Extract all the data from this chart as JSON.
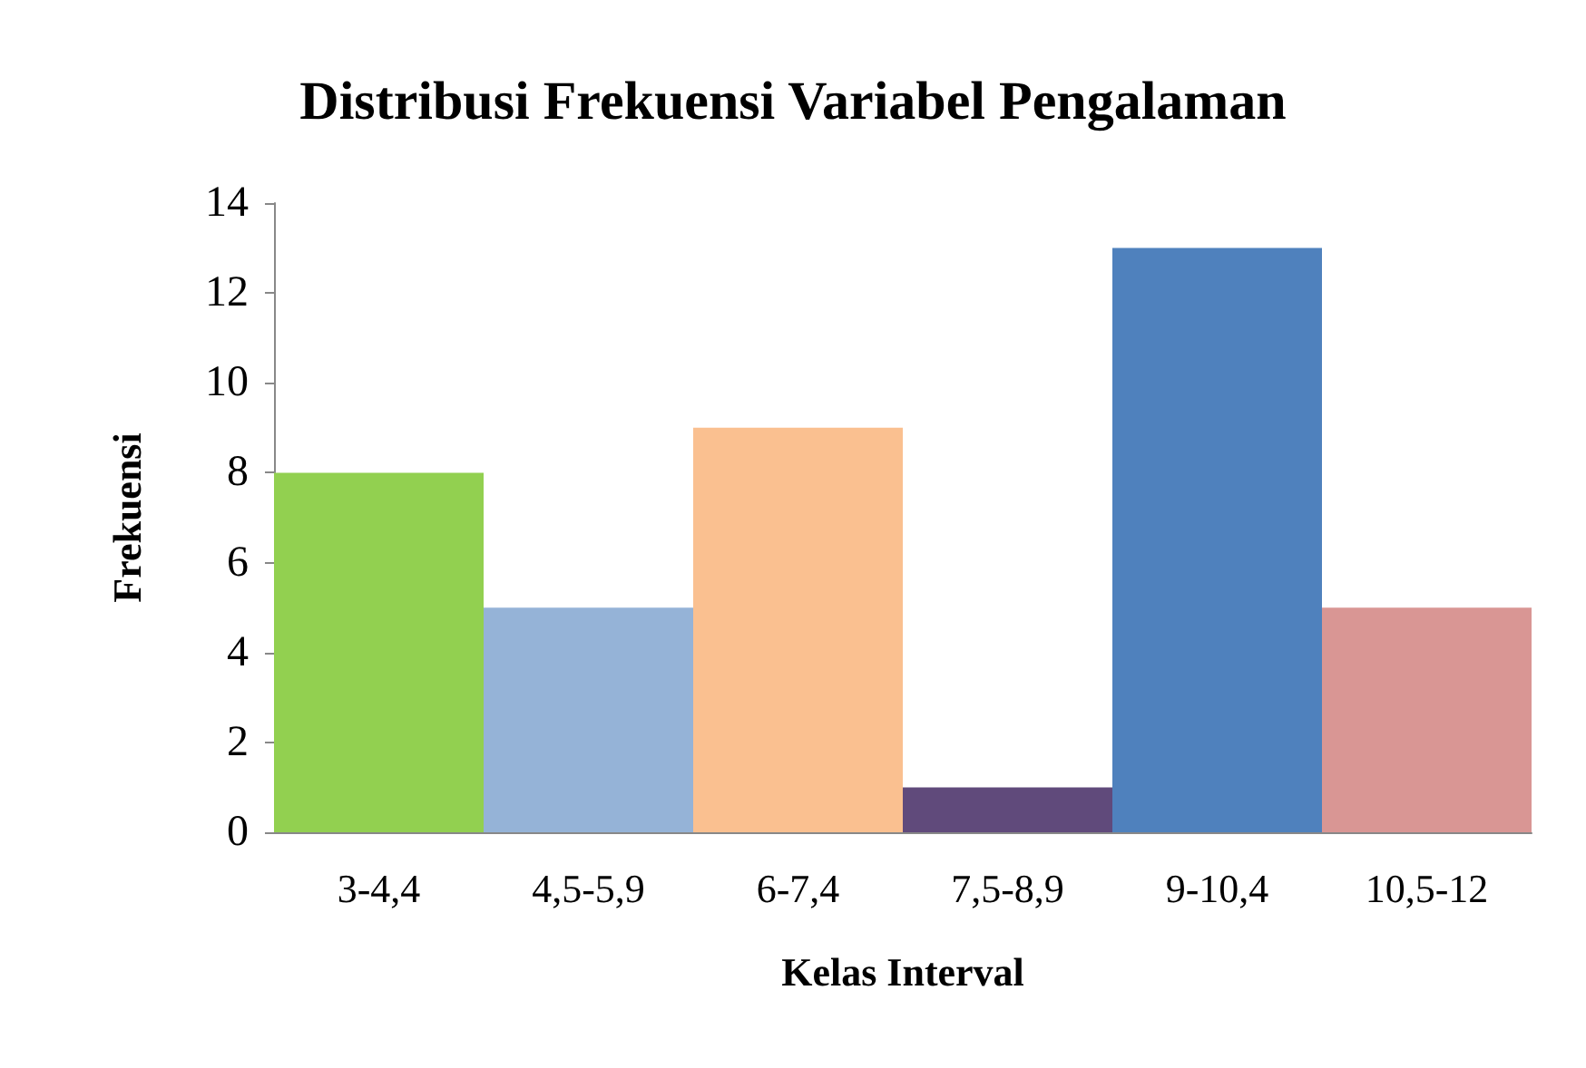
{
  "chart_data": {
    "type": "bar",
    "title": "Distribusi Frekuensi Variabel Pengalaman",
    "xlabel": "Kelas Interval",
    "ylabel": "Frekuensi",
    "categories": [
      "3-4,4",
      "4,5-5,9",
      "6-7,4",
      "7,5-8,9",
      "9-10,4",
      "10,5-12"
    ],
    "values": [
      8,
      5,
      9,
      1,
      13,
      5
    ],
    "colors": [
      "#92d050",
      "#95b3d7",
      "#fac090",
      "#604a7b",
      "#4f81bd",
      "#d99694"
    ],
    "ylim": [
      0,
      14
    ],
    "yticks": [
      0,
      2,
      4,
      6,
      8,
      10,
      12,
      14
    ]
  }
}
